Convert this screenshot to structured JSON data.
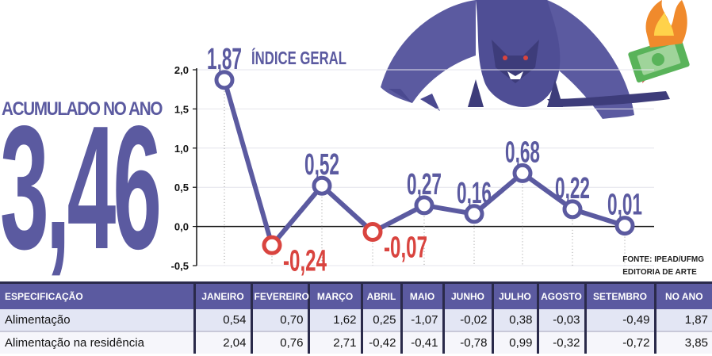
{
  "accumulated": {
    "label": "ACUMULADO NO ANO",
    "value": "3,46"
  },
  "chart_data": {
    "type": "line",
    "title": "ÍNDICE GERAL",
    "categories": [
      "JANEIRO",
      "FEVEREIRO",
      "MARÇO",
      "ABRIL",
      "MAIO",
      "JUNHO",
      "JULHO",
      "AGOSTO",
      "SETEMBRO"
    ],
    "values": [
      1.87,
      -0.24,
      0.52,
      -0.07,
      0.27,
      0.16,
      0.68,
      0.22,
      0.01
    ],
    "value_labels": [
      "1,87",
      "-0,24",
      "0,52",
      "-0,07",
      "0,27",
      "0,16",
      "0,68",
      "0,22",
      "0,01"
    ],
    "yticks": [
      "2,0",
      "1,5",
      "1,0",
      "0,5",
      "0,0",
      "-0,5"
    ],
    "ytick_values": [
      2.0,
      1.5,
      1.0,
      0.5,
      0.0,
      -0.5
    ],
    "ylim": [
      -0.5,
      2.0
    ],
    "grid": true,
    "colors": {
      "line": "#5b5aa0",
      "negative": "#d9443f",
      "axis": "#111111"
    }
  },
  "source": {
    "line1": "FONTE: IPEAD/UFMG",
    "line2": "EDITORIA DE ARTE"
  },
  "table": {
    "headers": [
      "ESPECIFICAÇÃO",
      "JANEIRO",
      "FEVEREIRO",
      "MARÇO",
      "ABRIL",
      "MAIO",
      "JUNHO",
      "JULHO",
      "AGOSTO",
      "SETEMBRO",
      "NO ANO"
    ],
    "rows": [
      [
        "Alimentação",
        "0,54",
        "0,70",
        "1,62",
        "0,25",
        "-1,07",
        "-0,02",
        "0,38",
        "-0,03",
        "-0,49",
        "1,87"
      ],
      [
        "Alimentação na residência",
        "2,04",
        "0,76",
        "2,71",
        "-0,42",
        "-0,41",
        "-0,78",
        "0,99",
        "-0,32",
        "-0,72",
        "3,85"
      ]
    ]
  },
  "icons": {
    "illustration": "dragon-with-burning-money-icon"
  }
}
